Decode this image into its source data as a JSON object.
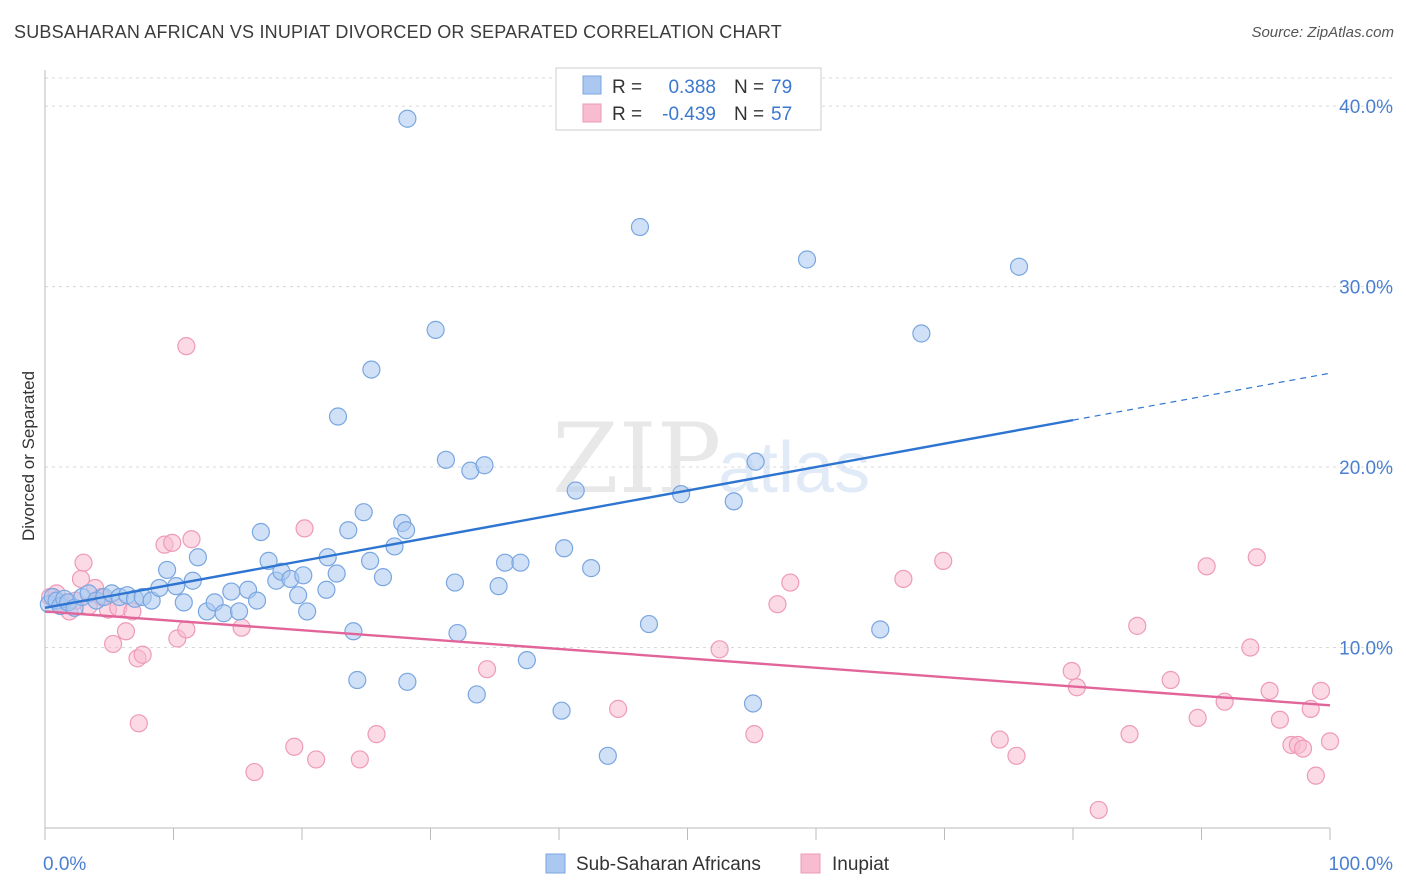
{
  "header": {
    "title": "SUBSAHARAN AFRICAN VS INUPIAT DIVORCED OR SEPARATED CORRELATION CHART",
    "source": "Source: ZipAtlas.com"
  },
  "watermark": {
    "zip": "ZIP",
    "atlas": "atlas"
  },
  "legend_box": {
    "rows": [
      {
        "r_label": "R =",
        "r_value": "0.388",
        "n_label": "N =",
        "n_value": "79"
      },
      {
        "r_label": "R =",
        "r_value": "-0.439",
        "n_label": "N =",
        "n_value": "57"
      }
    ]
  },
  "colors": {
    "blue_fill": "#aac8f0",
    "blue_stroke": "#7aa6e0",
    "blue_line": "#2e75d2",
    "pink_fill": "#f7bcd0",
    "pink_stroke": "#ee9ab8",
    "pink_line": "#e2659a",
    "grid": "#d8d8d8",
    "axis_text": "#4a7fd0"
  },
  "chart_data": {
    "type": "scatter",
    "title": "SUBSAHARAN AFRICAN VS INUPIAT DIVORCED OR SEPARATED CORRELATION CHART",
    "xlabel": "",
    "ylabel": "Divorced or Separated",
    "xlim": [
      0,
      100
    ],
    "ylim": [
      0,
      42
    ],
    "x_tick_labels": [
      "0.0%",
      "100.0%"
    ],
    "y_ticks": [
      10,
      20,
      30,
      40
    ],
    "y_tick_labels": [
      "10.0%",
      "20.0%",
      "30.0%",
      "40.0%"
    ],
    "grid": true,
    "legend_position": "bottom",
    "series": [
      {
        "name": "Sub-Saharan Africans",
        "color": "#aac8f0",
        "r": 0.388,
        "n": 79,
        "trend": {
          "x0": 0,
          "y0": 12.2,
          "x1": 80,
          "y1": 22.6,
          "dash_to_x": 100,
          "dash_to_y": 25.2
        },
        "points": [
          [
            0.3,
            12.4
          ],
          [
            0.6,
            12.8
          ],
          [
            0.9,
            12.6
          ],
          [
            1.2,
            12.3
          ],
          [
            1.5,
            12.7
          ],
          [
            1.8,
            12.5
          ],
          [
            2.3,
            12.2
          ],
          [
            2.9,
            12.8
          ],
          [
            3.4,
            13.0
          ],
          [
            4.0,
            12.6
          ],
          [
            4.6,
            12.8
          ],
          [
            5.2,
            13.0
          ],
          [
            5.8,
            12.8
          ],
          [
            6.4,
            12.9
          ],
          [
            7.0,
            12.7
          ],
          [
            7.6,
            12.8
          ],
          [
            8.3,
            12.6
          ],
          [
            8.9,
            13.3
          ],
          [
            9.5,
            14.3
          ],
          [
            10.2,
            13.4
          ],
          [
            10.8,
            12.5
          ],
          [
            11.5,
            13.7
          ],
          [
            11.9,
            15.0
          ],
          [
            12.6,
            12.0
          ],
          [
            13.2,
            12.5
          ],
          [
            13.9,
            11.9
          ],
          [
            14.5,
            13.1
          ],
          [
            15.1,
            12.0
          ],
          [
            15.8,
            13.2
          ],
          [
            16.5,
            12.6
          ],
          [
            16.8,
            16.4
          ],
          [
            17.4,
            14.8
          ],
          [
            18.0,
            13.7
          ],
          [
            18.4,
            14.2
          ],
          [
            19.1,
            13.8
          ],
          [
            19.7,
            12.9
          ],
          [
            20.1,
            14.0
          ],
          [
            20.4,
            12.0
          ],
          [
            22.0,
            15.0
          ],
          [
            21.9,
            13.2
          ],
          [
            22.7,
            14.1
          ],
          [
            23.6,
            16.5
          ],
          [
            24.0,
            10.9
          ],
          [
            24.8,
            17.5
          ],
          [
            25.3,
            14.8
          ],
          [
            26.3,
            13.9
          ],
          [
            27.2,
            15.6
          ],
          [
            27.8,
            16.9
          ],
          [
            28.1,
            16.5
          ],
          [
            30.4,
            27.6
          ],
          [
            31.2,
            20.4
          ],
          [
            31.9,
            13.6
          ],
          [
            32.1,
            10.8
          ],
          [
            33.1,
            19.8
          ],
          [
            34.2,
            20.1
          ],
          [
            35.3,
            13.4
          ],
          [
            35.8,
            14.7
          ],
          [
            37.0,
            14.7
          ],
          [
            37.5,
            9.3
          ],
          [
            25.4,
            25.4
          ],
          [
            22.8,
            22.8
          ],
          [
            28.2,
            39.3
          ],
          [
            40.4,
            15.5
          ],
          [
            41.3,
            18.7
          ],
          [
            42.5,
            14.4
          ],
          [
            46.3,
            33.3
          ],
          [
            47.0,
            11.3
          ],
          [
            49.5,
            18.5
          ],
          [
            53.6,
            18.1
          ],
          [
            55.3,
            20.3
          ],
          [
            59.3,
            31.5
          ],
          [
            65.0,
            11.0
          ],
          [
            68.2,
            27.4
          ],
          [
            75.8,
            31.1
          ],
          [
            24.3,
            8.2
          ],
          [
            28.2,
            8.1
          ],
          [
            33.6,
            7.4
          ],
          [
            40.2,
            6.5
          ],
          [
            43.8,
            4.0
          ],
          [
            55.1,
            6.9
          ]
        ]
      },
      {
        "name": "Inupiat",
        "color": "#f7bcd0",
        "r": -0.439,
        "n": 57,
        "trend": {
          "x0": 0,
          "y0": 12.0,
          "x1": 100,
          "y1": 6.8
        },
        "points": [
          [
            0.4,
            12.8
          ],
          [
            0.9,
            13.0
          ],
          [
            1.4,
            12.4
          ],
          [
            1.9,
            12.0
          ],
          [
            2.4,
            12.6
          ],
          [
            2.8,
            13.8
          ],
          [
            3.0,
            14.7
          ],
          [
            3.4,
            12.3
          ],
          [
            3.9,
            13.3
          ],
          [
            4.4,
            12.8
          ],
          [
            4.9,
            12.1
          ],
          [
            5.3,
            10.2
          ],
          [
            5.7,
            12.2
          ],
          [
            6.3,
            10.9
          ],
          [
            6.8,
            12.0
          ],
          [
            7.2,
            9.4
          ],
          [
            7.6,
            9.6
          ],
          [
            7.3,
            5.8
          ],
          [
            9.3,
            15.7
          ],
          [
            9.9,
            15.8
          ],
          [
            10.3,
            10.5
          ],
          [
            11.0,
            11.0
          ],
          [
            11.4,
            16.0
          ],
          [
            11.0,
            26.7
          ],
          [
            15.3,
            11.1
          ],
          [
            16.3,
            3.1
          ],
          [
            19.4,
            4.5
          ],
          [
            20.2,
            16.6
          ],
          [
            21.1,
            3.8
          ],
          [
            24.5,
            3.8
          ],
          [
            25.8,
            5.2
          ],
          [
            34.4,
            8.8
          ],
          [
            44.6,
            6.6
          ],
          [
            52.5,
            9.9
          ],
          [
            55.2,
            5.2
          ],
          [
            58.0,
            13.6
          ],
          [
            57.0,
            12.4
          ],
          [
            66.8,
            13.8
          ],
          [
            69.9,
            14.8
          ],
          [
            74.3,
            4.9
          ],
          [
            75.6,
            4.0
          ],
          [
            79.9,
            8.7
          ],
          [
            80.3,
            7.8
          ],
          [
            82.0,
            1.0
          ],
          [
            84.4,
            5.2
          ],
          [
            85.0,
            11.2
          ],
          [
            87.6,
            8.2
          ],
          [
            89.7,
            6.1
          ],
          [
            90.4,
            14.5
          ],
          [
            91.8,
            7.0
          ],
          [
            93.8,
            10.0
          ],
          [
            94.3,
            15.0
          ],
          [
            95.3,
            7.6
          ],
          [
            96.1,
            6.0
          ],
          [
            97.0,
            4.6
          ],
          [
            97.5,
            4.6
          ],
          [
            97.9,
            4.4
          ],
          [
            98.5,
            6.6
          ],
          [
            98.9,
            2.9
          ],
          [
            99.3,
            7.6
          ],
          [
            100,
            4.8
          ]
        ]
      }
    ]
  }
}
